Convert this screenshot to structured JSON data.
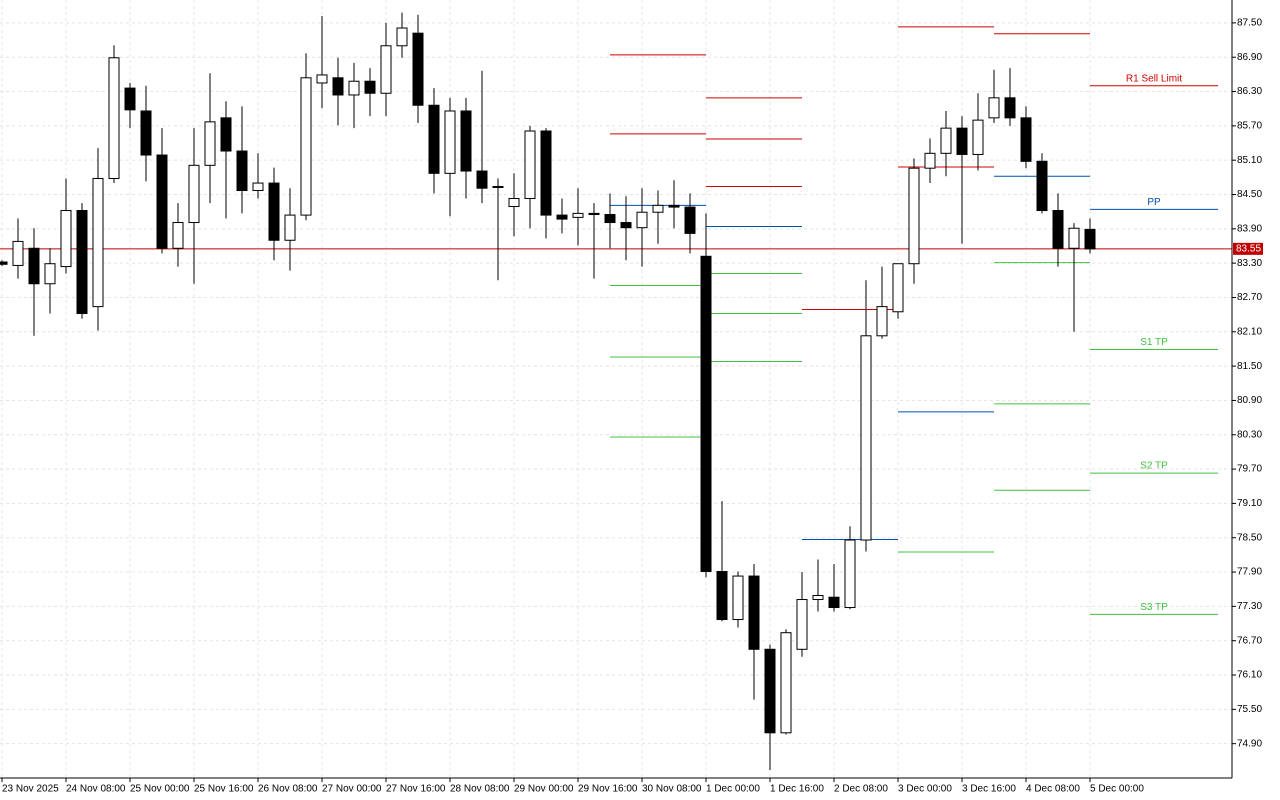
{
  "chart_data": {
    "type": "candlestick",
    "categories": [
      "23 Nov 2025",
      null,
      null,
      null,
      "24 Nov 08:00",
      null,
      null,
      null,
      "25 Nov 00:00",
      null,
      null,
      null,
      "25 Nov 16:00",
      null,
      null,
      null,
      "26 Nov 08:00",
      null,
      null,
      null,
      "27 Nov 00:00",
      null,
      null,
      null,
      "27 Nov 16:00",
      null,
      null,
      null,
      "28 Nov 08:00",
      null,
      null,
      null,
      "29 Nov 00:00",
      null,
      null,
      null,
      "29 Nov 16:00",
      null,
      null,
      null,
      "30 Nov 08:00",
      null,
      null,
      null,
      "1 Dec 00:00",
      null,
      null,
      null,
      "1 Dec 16:00",
      null,
      null,
      null,
      "2 Dec 08:00",
      null,
      null,
      null,
      "3 Dec 00:00",
      null,
      null,
      null,
      "3 Dec 16:00",
      null,
      null,
      null,
      "4 Dec 08:00",
      null,
      null,
      null,
      "5 Dec 00:00"
    ],
    "open": [
      83.32,
      83.26,
      83.56,
      82.94,
      83.24,
      84.22,
      82.54,
      84.78,
      86.36,
      85.96,
      85.19,
      83.56,
      84.01,
      85.01,
      85.84,
      85.26,
      84.57,
      84.7,
      83.7,
      84.14,
      86.45,
      86.54,
      86.24,
      86.48,
      86.27,
      87.1,
      87.32,
      86.06,
      84.87,
      85.96,
      84.91,
      84.64,
      84.29,
      84.43,
      85.61,
      84.14,
      84.1,
      84.17,
      84.15,
      84.01,
      83.92,
      84.19,
      84.31,
      84.28,
      83.42,
      77.91,
      77.07,
      77.83,
      76.55,
      75.09,
      76.55,
      77.42,
      77.46,
      77.28,
      78.46,
      82.03,
      82.45,
      83.29,
      84.96,
      85.22,
      85.66,
      85.2,
      85.84,
      86.19,
      85.84,
      85.08,
      84.22,
      83.56,
      83.89
    ],
    "high": [
      83.35,
      84.08,
      83.91,
      83.56,
      84.78,
      84.35,
      85.31,
      87.11,
      86.45,
      86.4,
      85.66,
      84.35,
      85.66,
      86.62,
      86.13,
      86.04,
      85.22,
      84.97,
      84.61,
      86.97,
      87.62,
      86.89,
      86.8,
      86.71,
      87.5,
      87.68,
      87.64,
      86.36,
      86.19,
      86.19,
      86.66,
      84.78,
      84.87,
      85.7,
      85.66,
      84.43,
      84.61,
      84.35,
      84.52,
      84.47,
      84.61,
      84.57,
      84.75,
      84.52,
      84.17,
      79.14,
      77.91,
      78.04,
      76.63,
      76.9,
      77.9,
      78.12,
      78.04,
      78.7,
      83.0,
      83.24,
      83.29,
      85.13,
      85.48,
      85.96,
      85.87,
      86.27,
      86.68,
      86.71,
      86.04,
      85.22,
      84.52,
      84.0,
      84.08
    ],
    "low": [
      83.25,
      83.03,
      82.03,
      82.42,
      83.12,
      82.33,
      82.12,
      84.7,
      85.66,
      84.73,
      83.47,
      83.24,
      82.94,
      84.35,
      84.08,
      84.17,
      84.43,
      83.35,
      83.17,
      84.05,
      86.01,
      85.71,
      85.66,
      85.87,
      85.87,
      86.89,
      85.75,
      84.52,
      84.12,
      84.43,
      84.35,
      83.0,
      83.77,
      83.91,
      83.73,
      83.82,
      83.61,
      83.03,
      83.56,
      83.35,
      83.24,
      83.64,
      83.91,
      83.47,
      77.81,
      77.04,
      76.93,
      75.67,
      74.44,
      75.06,
      76.42,
      77.21,
      77.21,
      77.25,
      78.26,
      81.98,
      82.33,
      82.94,
      84.7,
      84.82,
      83.64,
      84.92,
      85.75,
      85.7,
      84.96,
      84.17,
      83.24,
      82.1,
      83.47
    ],
    "close": [
      83.28,
      83.68,
      82.94,
      83.29,
      84.22,
      82.42,
      84.78,
      86.89,
      85.98,
      85.19,
      83.56,
      84.01,
      85.01,
      85.77,
      85.26,
      84.57,
      84.7,
      83.7,
      84.14,
      86.54,
      86.59,
      86.24,
      86.48,
      86.27,
      87.1,
      87.41,
      86.06,
      84.87,
      85.96,
      84.91,
      84.61,
      84.63,
      84.43,
      85.61,
      84.14,
      84.07,
      84.17,
      84.15,
      84.01,
      83.92,
      84.19,
      84.31,
      84.28,
      83.82,
      77.91,
      77.07,
      77.83,
      76.55,
      75.09,
      76.84,
      77.42,
      77.49,
      77.28,
      78.46,
      82.03,
      82.54,
      83.29,
      84.96,
      85.22,
      85.66,
      85.2,
      85.8,
      86.19,
      85.84,
      85.08,
      84.22,
      83.56,
      83.91,
      83.55
    ],
    "up_color": "#ffffff",
    "down_color": "#000000",
    "ylim": [
      87.9,
      74.3
    ],
    "yticks": [
      {
        "value": 87.5,
        "label": "87.50"
      },
      {
        "value": 86.9,
        "label": "86.90"
      },
      {
        "value": 86.3,
        "label": "86.30"
      },
      {
        "value": 85.7,
        "label": "85.70"
      },
      {
        "value": 85.1,
        "label": "85.10"
      },
      {
        "value": 84.5,
        "label": "84.50"
      },
      {
        "value": 83.9,
        "label": "83.90"
      },
      {
        "value": 83.3,
        "label": "83.30"
      },
      {
        "value": 82.7,
        "label": "82.70"
      },
      {
        "value": 82.1,
        "label": "82.10"
      },
      {
        "value": 81.5,
        "label": "81.50"
      },
      {
        "value": 80.9,
        "label": "80.90"
      },
      {
        "value": 80.3,
        "label": "80.30"
      },
      {
        "value": 79.7,
        "label": "79.70"
      },
      {
        "value": 79.1,
        "label": "79.10"
      },
      {
        "value": 78.5,
        "label": "78.50"
      },
      {
        "value": 77.9,
        "label": "77.90"
      },
      {
        "value": 77.3,
        "label": "77.30"
      },
      {
        "value": 76.7,
        "label": "76.70"
      },
      {
        "value": 76.1,
        "label": "76.10"
      },
      {
        "value": 75.5,
        "label": "75.50"
      },
      {
        "value": 74.9,
        "label": "74.90"
      }
    ],
    "grid": true,
    "last_price": 83.55,
    "last_price_color": "#c00000",
    "resistance_color": "#d00000",
    "pivot_color": "#0050b0",
    "support_color": "#40c040",
    "pivot_blocks": [
      {
        "resistance": [
          86.94,
          85.56
        ],
        "pivot": 84.31,
        "support": [
          82.91,
          81.66,
          80.26
        ]
      },
      {
        "resistance": [
          86.19,
          85.47,
          84.64
        ],
        "pivot": 83.94,
        "support": [
          83.12,
          82.42,
          81.58
        ]
      },
      {
        "resistance": [
          82.49
        ],
        "pivot": 78.47,
        "support": []
      },
      {
        "resistance": [
          87.43,
          84.98
        ],
        "pivot": 80.7,
        "support": [
          78.25
        ]
      },
      {
        "resistance": [
          87.31
        ],
        "pivot": 84.82,
        "support": [
          83.31,
          80.84,
          79.33
        ]
      },
      {
        "resistance": [
          86.4
        ],
        "resistance_labels": [
          "R1 Sell Limit"
        ],
        "pivot": 84.24,
        "pivot_label": "PP",
        "support": [
          81.79,
          79.63,
          77.16
        ],
        "support_labels": [
          "S1 TP",
          "S2 TP",
          "S3 TP"
        ]
      }
    ]
  }
}
